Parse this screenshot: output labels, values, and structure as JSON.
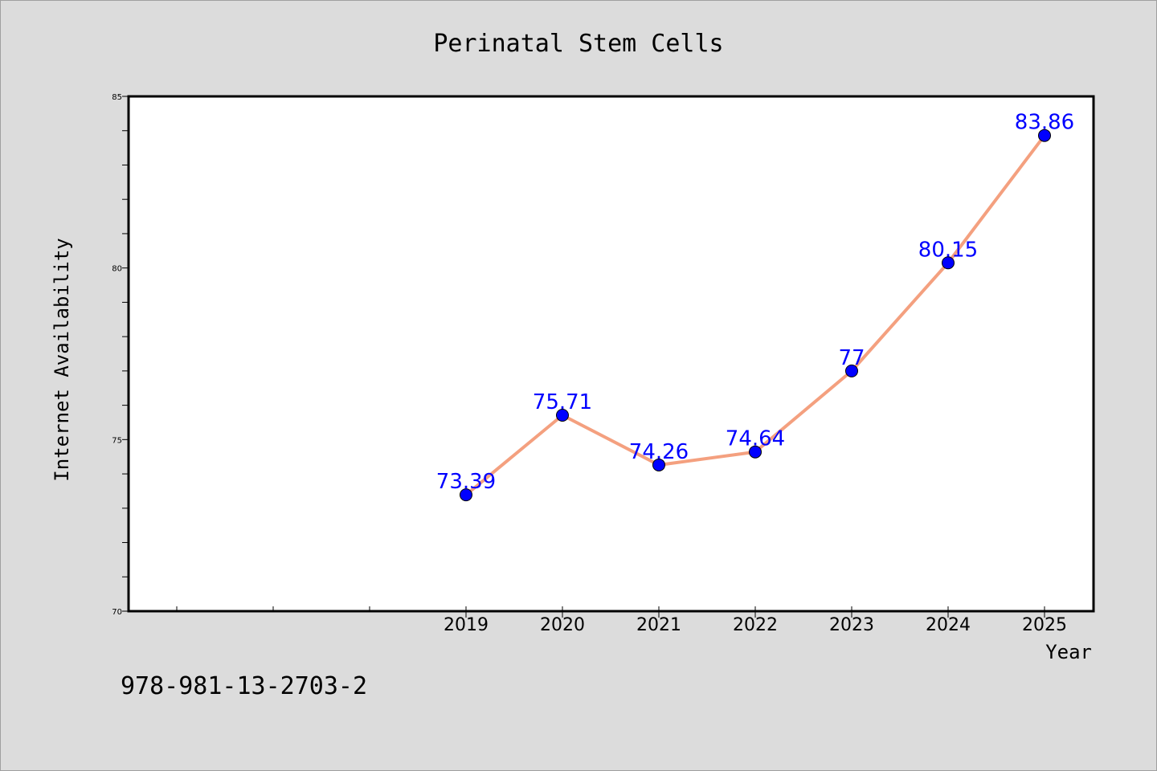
{
  "chart_data": {
    "type": "line",
    "title": "Perinatal Stem Cells",
    "xlabel": "Year",
    "ylabel": "Internet Availability",
    "categories": [
      "2019",
      "2020",
      "2021",
      "2022",
      "2023",
      "2024",
      "2025"
    ],
    "series": [
      {
        "values": [
          73.39,
          75.71,
          74.26,
          74.64,
          77,
          80.15,
          83.86
        ],
        "labels": [
          "73.39",
          "75.71",
          "74.26",
          "74.64",
          "77",
          "80.15",
          "83.86"
        ]
      }
    ],
    "ylim": [
      70,
      85
    ],
    "yticks": [
      "70",
      "75",
      "80",
      "85"
    ],
    "grid": false,
    "colors": {
      "line": "#f4a07f",
      "marker": "#0000ff",
      "data_label": "#0000ff",
      "background": "#dcdcdc",
      "plot_background": "#ffffff"
    }
  },
  "footer": {
    "isbn": "978-981-13-2703-2"
  }
}
